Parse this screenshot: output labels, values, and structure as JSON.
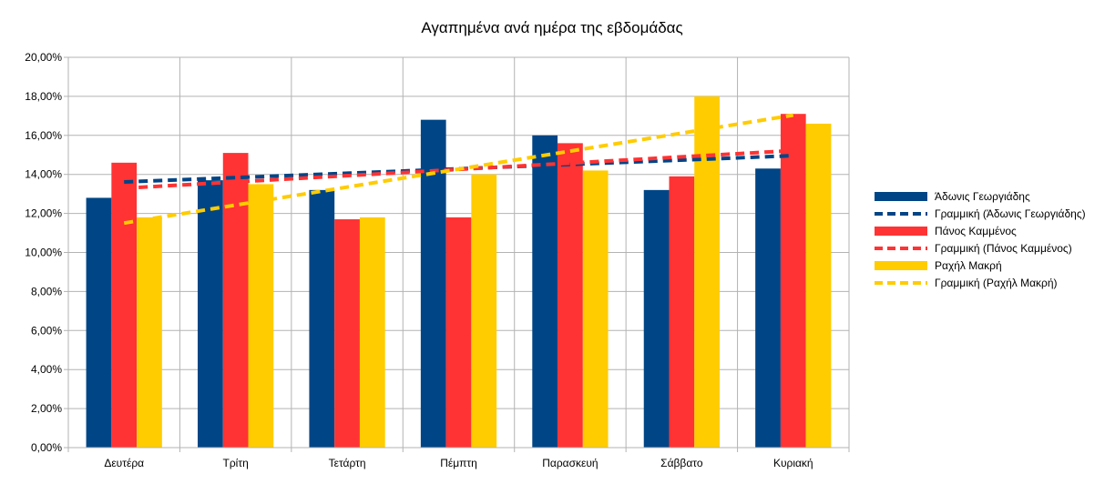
{
  "chart_data": {
    "type": "bar",
    "title": "Αγαπημένα ανά ημέρα της εβδομάδας",
    "categories": [
      "Δευτέρα",
      "Τρίτη",
      "Τετάρτη",
      "Πέμπτη",
      "Παρασκευή",
      "Σάββατο",
      "Κυριακή"
    ],
    "ylim": [
      0,
      20
    ],
    "y_ticks": [
      "0,00%",
      "2,00%",
      "4,00%",
      "6,00%",
      "8,00%",
      "10,00%",
      "12,00%",
      "14,00%",
      "16,00%",
      "18,00%",
      "20,00%"
    ],
    "y_unit": "%",
    "grid": true,
    "legend_position": "right",
    "series": [
      {
        "name": "Άδωνις Γεωργιάδης",
        "color": "#004586",
        "values": [
          12.8,
          13.7,
          13.2,
          16.8,
          16.0,
          13.2,
          14.3
        ],
        "trendline": {
          "label": "Γραμμική (Άδωνις Γεωργιάδης)",
          "type": "linear"
        }
      },
      {
        "name": "Πάνος Καμμένος",
        "color": "#ff3333",
        "values": [
          14.6,
          15.1,
          11.7,
          11.8,
          15.6,
          13.9,
          17.1
        ],
        "trendline": {
          "label": "Γραμμική (Πάνος Καμμένος)",
          "type": "linear"
        }
      },
      {
        "name": "Ραχήλ Μακρή",
        "color": "#ffcc00",
        "values": [
          11.8,
          13.5,
          11.8,
          14.0,
          14.2,
          18.0,
          16.6
        ],
        "trendline": {
          "label": "Γραμμική (Ραχήλ Μακρή)",
          "type": "linear"
        }
      }
    ]
  }
}
